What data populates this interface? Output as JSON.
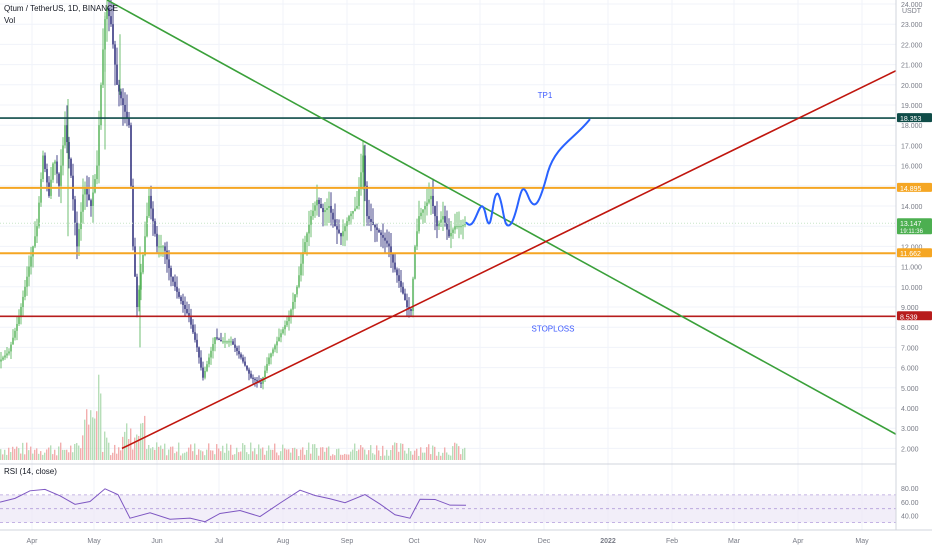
{
  "header": {
    "symbol": "Qtum / TetherUS, 1D, BINANCE",
    "volume_label": "Vol",
    "rsi_label": "RSI (14, close)"
  },
  "price_axis": {
    "unit": "USDT",
    "ticks": [
      "24.000",
      "23.000",
      "22.000",
      "21.000",
      "20.000",
      "19.000",
      "18.000",
      "17.000",
      "16.000",
      "15.000",
      "14.000",
      "13.000",
      "12.000",
      "11.000",
      "10.000",
      "9.000",
      "8.000",
      "7.000",
      "6.000",
      "5.000",
      "4.000",
      "3.000",
      "2.000"
    ]
  },
  "rsi_axis": {
    "ticks": [
      "80.00",
      "60.00",
      "40.00"
    ]
  },
  "time_axis": {
    "labels": [
      "Apr",
      "May",
      "Jun",
      "Jul",
      "Aug",
      "Sep",
      "Oct",
      "Nov",
      "Dec",
      "2022",
      "Feb",
      "Mar",
      "Apr",
      "May"
    ]
  },
  "levels": {
    "tp1": {
      "price": 18.353,
      "label": "18.353",
      "text": "TP1",
      "color": "#0f4c48"
    },
    "resistance": {
      "price": 14.895,
      "label": "14.895",
      "color": "#f5a623"
    },
    "support": {
      "price": 11.662,
      "label": "11.662",
      "color": "#f5a623"
    },
    "stoploss": {
      "price": 8.539,
      "label": "8.539",
      "text": "STOPLOSS",
      "color": "#b71c1c"
    }
  },
  "current_price": {
    "price": 13.147,
    "label": "13.147",
    "countdown": "19:11:36",
    "color": "#4caf50"
  },
  "colors": {
    "up": "#4caf50",
    "down": "#1a1a6e",
    "green_line": "#3aa03a",
    "red_line": "#c0160e",
    "projection": "#2962ff",
    "rsi": "#7e57c2"
  },
  "chart_data": {
    "type": "line",
    "title": "Qtum / TetherUS, 1D, BINANCE",
    "x": [
      "Apr",
      "May",
      "Jun",
      "Jul",
      "Aug",
      "Sep",
      "Oct",
      "Nov"
    ],
    "series": [
      {
        "values": [
          6.5,
          20.0,
          10.0,
          6.5,
          9.0,
          14.0,
          9.5,
          13.1
        ]
      }
    ],
    "ylim": [
      2.0,
      24.0
    ],
    "grid": true
  }
}
